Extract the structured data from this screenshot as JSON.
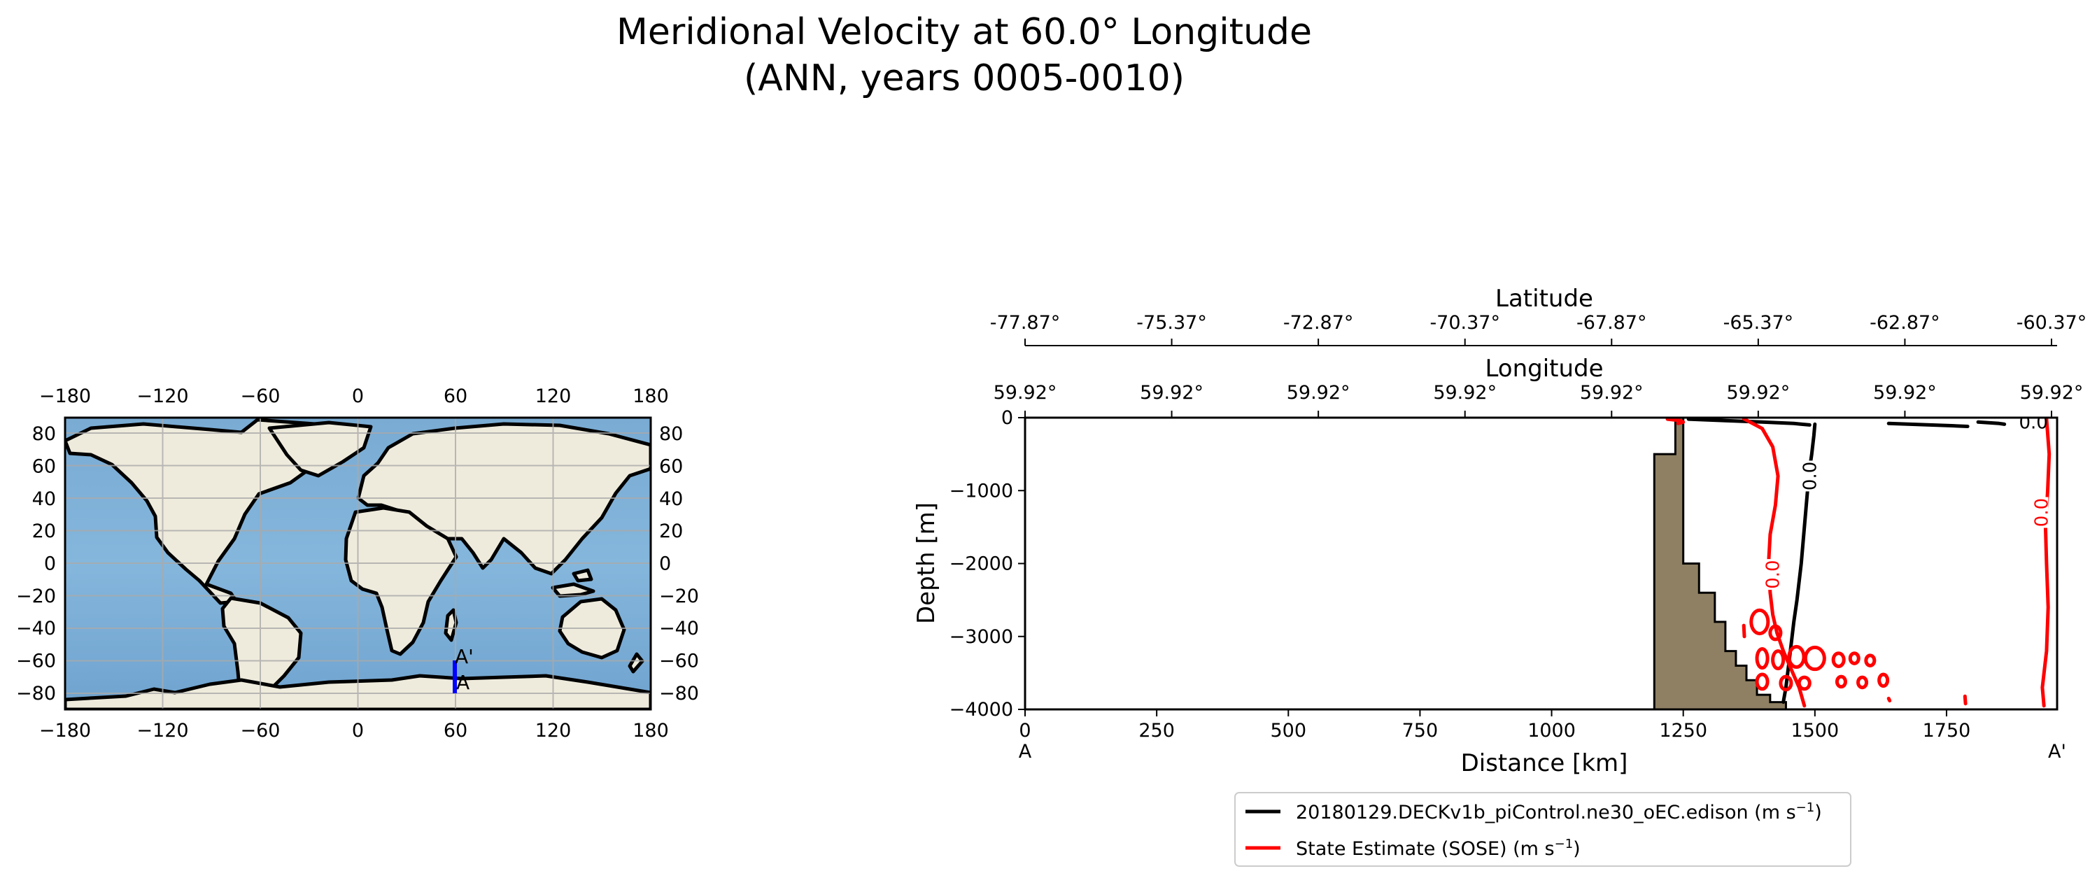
{
  "figure": {
    "title_line1": "Meridional Velocity at 60.0° Longitude",
    "title_line2": "(ANN, years 0005-0010)"
  },
  "colors": {
    "ocean": "#7fb0d6",
    "land": "#efebdc",
    "coastline": "#000000",
    "transect": "#0000ff",
    "bathymetry": "#8f8063",
    "model_contour": "#000000",
    "sose_contour": "#ff0000",
    "gridline": "#aaaaaa"
  },
  "map": {
    "type": "map",
    "projection": "PlateCarree",
    "xticks": [
      "−180",
      "−120",
      "−60",
      "0",
      "60",
      "120",
      "180"
    ],
    "yticks_left": [
      "80",
      "60",
      "40",
      "20",
      "0",
      "−20",
      "−40",
      "−60",
      "−80"
    ],
    "yticks_right": [
      "80",
      "60",
      "40",
      "20",
      "0",
      "−20",
      "−40",
      "−60",
      "−80"
    ],
    "transect": {
      "start_label": "A",
      "end_label": "A'",
      "lon": 59.92,
      "lat_start": -77.87,
      "lat_end": -60.37
    }
  },
  "chart_data": {
    "type": "line",
    "title": "",
    "xlabel": "Distance [km]",
    "ylabel": "Depth [m]",
    "xlim": [
      0,
      1960
    ],
    "ylim": [
      -4000,
      0
    ],
    "xticks": [
      0,
      250,
      500,
      750,
      1000,
      1250,
      1500,
      1750
    ],
    "yticks": [
      0,
      -1000,
      -2000,
      -3000,
      -4000
    ],
    "xtick_labels": [
      "0",
      "250",
      "500",
      "750",
      "1000",
      "1250",
      "1500",
      "1750"
    ],
    "ytick_labels": [
      "0",
      "−1000",
      "−2000",
      "−3000",
      "−4000"
    ],
    "start_label": "A",
    "end_label": "A'",
    "top_axis_1": {
      "label": "Latitude",
      "ticks": [
        "-77.87°",
        "-75.37°",
        "-72.87°",
        "-70.37°",
        "-67.87°",
        "-65.37°",
        "-62.87°",
        "-60.37°"
      ]
    },
    "top_axis_2": {
      "label": "Longitude",
      "ticks": [
        "59.92°",
        "59.92°",
        "59.92°",
        "59.92°",
        "59.92°",
        "59.92°",
        "59.92°",
        "59.92°"
      ]
    },
    "bathymetry": {
      "x": [
        0,
        1195,
        1195,
        1235,
        1235,
        1250,
        1250,
        1280,
        1280,
        1310,
        1310,
        1330,
        1330,
        1350,
        1350,
        1370,
        1370,
        1390,
        1390,
        1415,
        1415,
        1445,
        1445
      ],
      "y": [
        -4000,
        -4000,
        -500,
        -500,
        0,
        0,
        -2000,
        -2000,
        -2400,
        -2400,
        -2800,
        -2800,
        -3200,
        -3200,
        -3400,
        -3400,
        -3600,
        -3600,
        -3800,
        -3800,
        -3900,
        -3900,
        -4000
      ]
    },
    "contour_labels": [
      {
        "text": "0.0",
        "series": "model",
        "x": 1490,
        "y": -800
      },
      {
        "text": "0.0",
        "series": "model",
        "x": 1915,
        "y": -60
      },
      {
        "text": "0.0",
        "series": "sose",
        "x": 1420,
        "y": -2150
      },
      {
        "text": "0.0",
        "series": "sose",
        "x": 1930,
        "y": -1300
      }
    ],
    "series": [
      {
        "name": "20180129.DECKv1b_piControl.ne30_oEC.edison (m s",
        "unit_sup": "−1",
        "label_suffix": ")",
        "key": "model",
        "lines": [
          {
            "x": [
              1260,
              1330,
              1400,
              1430,
              1460,
              1475,
              1490
            ],
            "y": [
              -20,
              -40,
              -60,
              -70,
              -80,
              -90,
              -100
            ]
          },
          {
            "x": [
              1500,
              1498,
              1494,
              1490,
              1486,
              1480,
              1474,
              1466,
              1460,
              1455,
              1450,
              1445,
              1440
            ],
            "y": [
              -90,
              -250,
              -500,
              -700,
              -1000,
              -1500,
              -2000,
              -2500,
              -2800,
              -3100,
              -3400,
              -3700,
              -3900
            ]
          },
          {
            "x": [
              1640,
              1700,
              1760,
              1790
            ],
            "y": [
              -80,
              -95,
              -110,
              -120
            ]
          },
          {
            "x": [
              1810,
              1830,
              1850,
              1860
            ],
            "y": [
              -60,
              -70,
              -80,
              -90
            ]
          }
        ],
        "ellipses": []
      },
      {
        "name": "State Estimate (SOSE) (m s",
        "unit_sup": "−1",
        "label_suffix": ")",
        "key": "sose",
        "lines": [
          {
            "x": [
              1220,
              1245,
              1250,
              1240
            ],
            "y": [
              -20,
              -40,
              -60,
              -80
            ]
          },
          {
            "x": [
              1365,
              1400,
              1420,
              1430,
              1425,
              1415,
              1412,
              1415,
              1420,
              1428,
              1440,
              1455,
              1470,
              1480
            ],
            "y": [
              -15,
              -150,
              -400,
              -800,
              -1200,
              -1600,
              -2000,
              -2400,
              -2700,
              -2950,
              -3200,
              -3450,
              -3700,
              -3950
            ]
          },
          {
            "x": [
              1940,
              1945,
              1942,
              1938,
              1940,
              1943,
              1940,
              1932,
              1935
            ],
            "y": [
              -15,
              -500,
              -1000,
              -1500,
              -2000,
              -2600,
              -3200,
              -3700,
              -3950
            ]
          },
          {
            "x": [
              1365,
              1366
            ],
            "y": [
              -2850,
              -3000
            ]
          },
          {
            "x": [
              1785,
              1786
            ],
            "y": [
              -3820,
              -3920
            ]
          },
          {
            "x": [
              1640,
              1642
            ],
            "y": [
              -3850,
              -3880
            ]
          }
        ],
        "ellipses": [
          {
            "cx": 1395,
            "cy": -2800,
            "rx": 16,
            "ry": 160
          },
          {
            "cx": 1425,
            "cy": -2950,
            "rx": 10,
            "ry": 90
          },
          {
            "cx": 1400,
            "cy": -3300,
            "rx": 10,
            "ry": 130
          },
          {
            "cx": 1430,
            "cy": -3320,
            "rx": 10,
            "ry": 120
          },
          {
            "cx": 1465,
            "cy": -3280,
            "rx": 14,
            "ry": 140
          },
          {
            "cx": 1500,
            "cy": -3300,
            "rx": 18,
            "ry": 150
          },
          {
            "cx": 1400,
            "cy": -3620,
            "rx": 10,
            "ry": 100
          },
          {
            "cx": 1445,
            "cy": -3640,
            "rx": 10,
            "ry": 90
          },
          {
            "cx": 1480,
            "cy": -3640,
            "rx": 10,
            "ry": 80
          },
          {
            "cx": 1545,
            "cy": -3320,
            "rx": 10,
            "ry": 90
          },
          {
            "cx": 1575,
            "cy": -3300,
            "rx": 8,
            "ry": 70
          },
          {
            "cx": 1605,
            "cy": -3330,
            "rx": 8,
            "ry": 70
          },
          {
            "cx": 1630,
            "cy": -3600,
            "rx": 8,
            "ry": 80
          },
          {
            "cx": 1590,
            "cy": -3630,
            "rx": 8,
            "ry": 70
          },
          {
            "cx": 1550,
            "cy": -3620,
            "rx": 8,
            "ry": 70
          }
        ]
      }
    ]
  }
}
